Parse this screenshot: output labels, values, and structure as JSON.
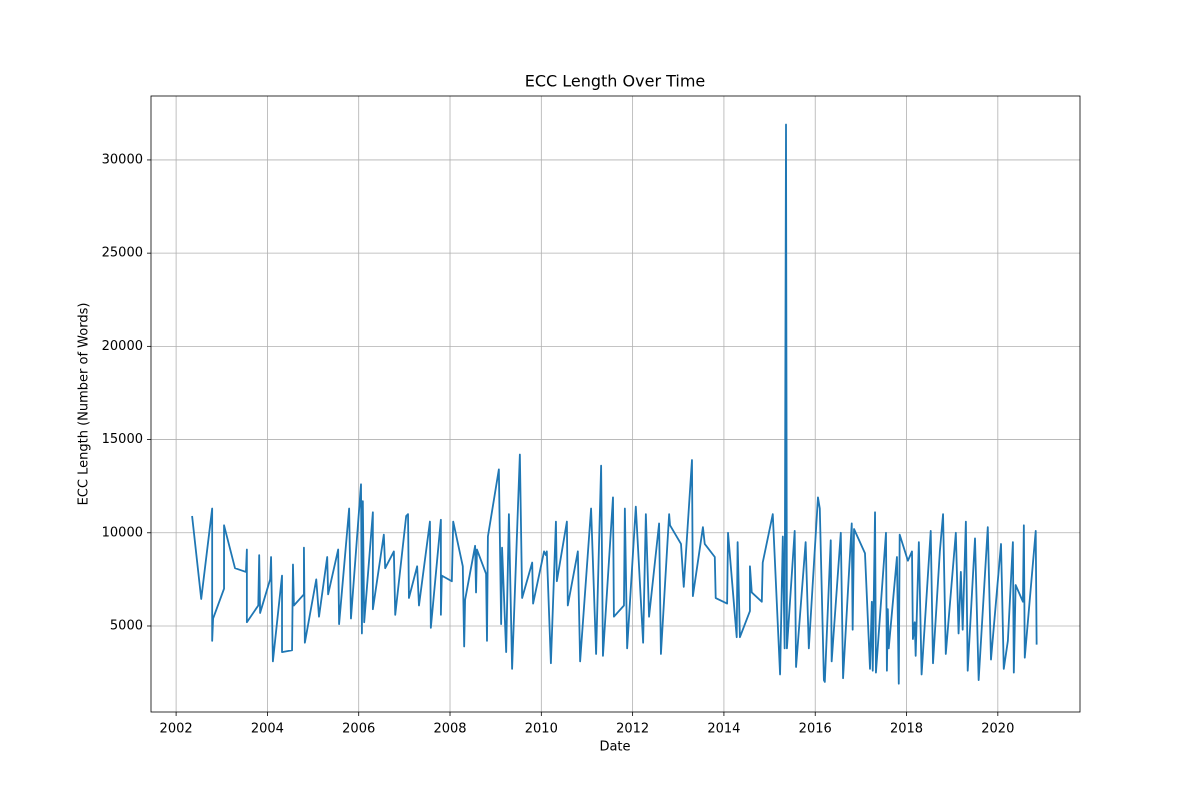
{
  "chart_data": {
    "type": "line",
    "title": "ECC Length Over Time",
    "x_label": "Date",
    "y_label": "ECC Length (Number of Words)",
    "color": "#1f77b4",
    "grid": true,
    "xlim": [
      2001.45,
      2021.8
    ],
    "ylim": [
      386,
      33430
    ],
    "xticks": [
      2002,
      2004,
      2006,
      2008,
      2010,
      2012,
      2014,
      2016,
      2018,
      2020
    ],
    "yticks": [
      5000,
      10000,
      15000,
      20000,
      25000,
      30000
    ],
    "x": [
      2002.35,
      2002.55,
      2002.79,
      2002.79,
      2002.81,
      2003.05,
      2003.05,
      2003.29,
      2003.53,
      2003.55,
      2003.55,
      2003.8,
      2003.82,
      2003.84,
      2004.06,
      2004.08,
      2004.12,
      2004.32,
      2004.32,
      2004.54,
      2004.56,
      2004.58,
      2004.8,
      2004.8,
      2004.82,
      2005.07,
      2005.13,
      2005.31,
      2005.33,
      2005.55,
      2005.57,
      2005.79,
      2005.83,
      2006.05,
      2006.07,
      2006.09,
      2006.12,
      2006.31,
      2006.31,
      2006.55,
      2006.58,
      2006.77,
      2006.8,
      2007.04,
      2007.08,
      2007.1,
      2007.28,
      2007.32,
      2007.56,
      2007.58,
      2007.8,
      2007.8,
      2007.82,
      2008.04,
      2008.07,
      2008.28,
      2008.31,
      2008.33,
      2008.55,
      2008.57,
      2008.59,
      2008.79,
      2008.81,
      2008.83,
      2009.07,
      2009.12,
      2009.14,
      2009.23,
      2009.29,
      2009.36,
      2009.53,
      2009.58,
      2009.8,
      2009.82,
      2010.06,
      2010.1,
      2010.12,
      2010.21,
      2010.32,
      2010.34,
      2010.56,
      2010.58,
      2010.8,
      2010.85,
      2011.09,
      2011.2,
      2011.31,
      2011.35,
      2011.57,
      2011.59,
      2011.81,
      2011.83,
      2011.88,
      2012.07,
      2012.23,
      2012.29,
      2012.36,
      2012.58,
      2012.62,
      2012.8,
      2012.82,
      2013.06,
      2013.12,
      2013.3,
      2013.32,
      2013.54,
      2013.58,
      2013.8,
      2013.82,
      2014.07,
      2014.09,
      2014.28,
      2014.3,
      2014.35,
      2014.57,
      2014.57,
      2014.61,
      2014.83,
      2014.85,
      2015.07,
      2015.23,
      2015.29,
      2015.33,
      2015.36,
      2015.38,
      2015.55,
      2015.58,
      2015.79,
      2015.86,
      2016.06,
      2016.1,
      2016.19,
      2016.21,
      2016.34,
      2016.36,
      2016.56,
      2016.61,
      2016.8,
      2016.82,
      2016.85,
      2017.09,
      2017.2,
      2017.24,
      2017.26,
      2017.31,
      2017.33,
      2017.55,
      2017.57,
      2017.59,
      2017.61,
      2017.79,
      2017.83,
      2017.85,
      2018.03,
      2018.12,
      2018.14,
      2018.18,
      2018.2,
      2018.27,
      2018.33,
      2018.53,
      2018.58,
      2018.73,
      2018.8,
      2018.86,
      2019.08,
      2019.14,
      2019.19,
      2019.23,
      2019.3,
      2019.34,
      2019.5,
      2019.58,
      2019.78,
      2019.85,
      2020.07,
      2020.13,
      2020.22,
      2020.33,
      2020.35,
      2020.39,
      2020.55,
      2020.57,
      2020.59,
      2020.83,
      2020.85
    ],
    "values": [
      10900,
      6450,
      11300,
      4200,
      5400,
      7000,
      10400,
      8100,
      7900,
      9100,
      5200,
      6100,
      8800,
      5700,
      7500,
      8700,
      3100,
      7700,
      3600,
      3700,
      8300,
      6100,
      6700,
      9200,
      4100,
      7500,
      5500,
      8700,
      6700,
      9100,
      5100,
      11300,
      5400,
      12600,
      4600,
      11700,
      5200,
      11100,
      5900,
      9900,
      8100,
      9000,
      5600,
      10900,
      11000,
      6500,
      8200,
      6100,
      10600,
      4900,
      10700,
      5600,
      7700,
      7400,
      10600,
      8200,
      3900,
      6400,
      9300,
      6800,
      9100,
      7800,
      4200,
      9800,
      13400,
      5100,
      9200,
      3600,
      11000,
      2700,
      14200,
      6500,
      8400,
      6200,
      9000,
      8800,
      9000,
      3000,
      10600,
      7400,
      10600,
      6100,
      9000,
      3100,
      11300,
      3500,
      13600,
      3400,
      11900,
      5500,
      6100,
      11300,
      3800,
      11400,
      4100,
      11000,
      5500,
      10500,
      3500,
      11000,
      10400,
      9400,
      7100,
      13900,
      6600,
      10300,
      9400,
      8700,
      6500,
      6200,
      10000,
      4400,
      9500,
      4400,
      5800,
      8200,
      6800,
      6300,
      8400,
      11000,
      2400,
      9800,
      3800,
      31900,
      3800,
      10100,
      2800,
      9500,
      3800,
      11900,
      11300,
      2100,
      2000,
      9600,
      3100,
      10000,
      2200,
      10500,
      4800,
      10200,
      8900,
      2700,
      6300,
      2600,
      11100,
      2500,
      10000,
      2600,
      5900,
      3800,
      8700,
      1900,
      9900,
      8500,
      9000,
      4300,
      5200,
      3400,
      9500,
      2400,
      10100,
      3000,
      9000,
      11000,
      3500,
      10000,
      4600,
      7900,
      4800,
      10600,
      2600,
      9700,
      2100,
      10300,
      3200,
      9400,
      2700,
      4200,
      9500,
      2500,
      7200,
      6300,
      10400,
      3300,
      10100,
      4000
    ]
  }
}
